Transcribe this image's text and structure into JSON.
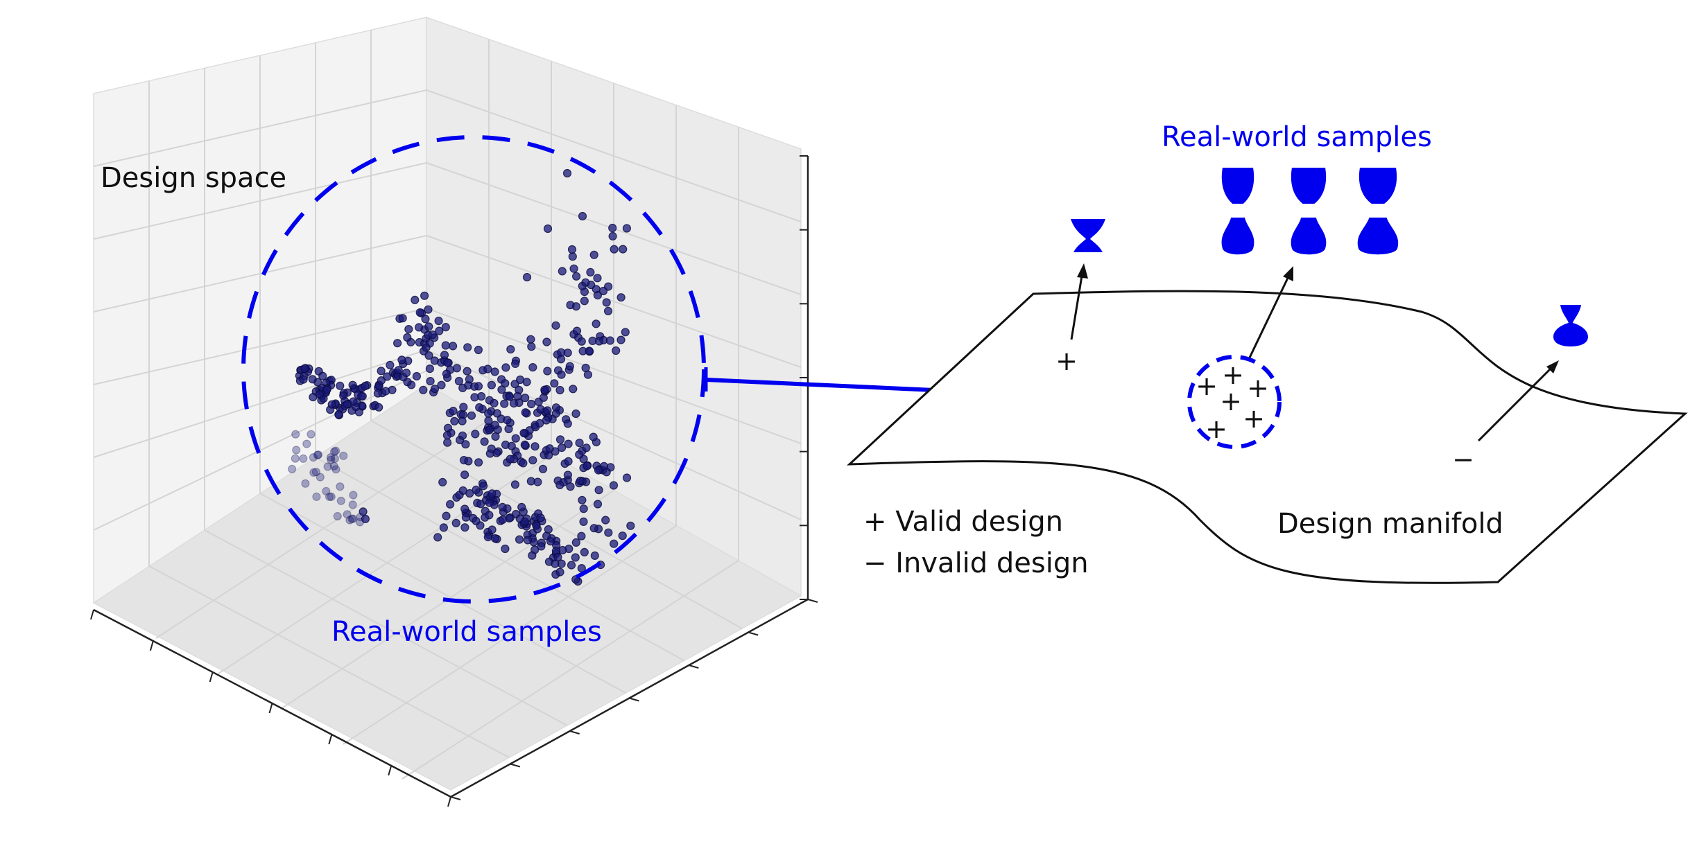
{
  "left_panel": {
    "title": "Design space",
    "sample_label": "Real-world samples"
  },
  "right_panel": {
    "sample_label": "Real-world samples",
    "manifold_label": "Design manifold",
    "legend": {
      "valid": "+ Valid design",
      "invalid": "− Invalid design"
    },
    "markers": {
      "plus": "+",
      "minus": "−"
    }
  },
  "colors": {
    "accent_blue": "#0000ee",
    "point_fill": "#1a1a7a",
    "ink": "#111111",
    "pane_light": "#f4f4f4",
    "pane_mid": "#ececec",
    "pane_dark": "#e2e2e2",
    "grid": "#d6d6d6"
  },
  "icons": {
    "invalid_shape_left": "hourglass-shape-icon",
    "invalid_shape_right": "vase-shape-icon",
    "sample_shapes": "vase-shape-icon"
  }
}
